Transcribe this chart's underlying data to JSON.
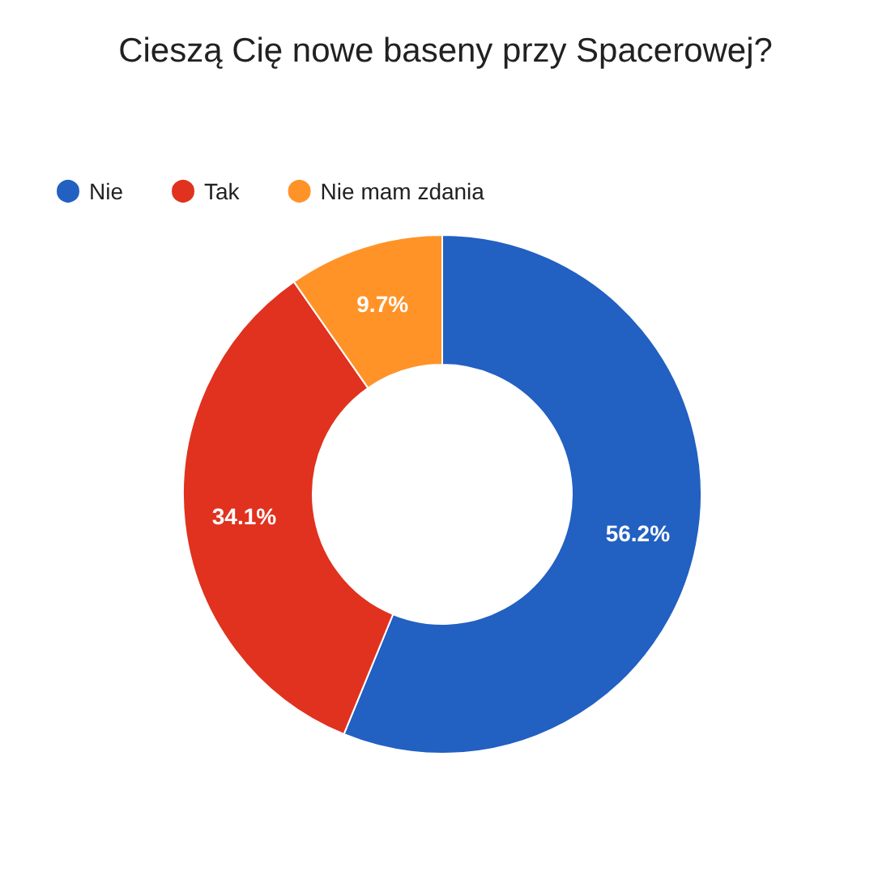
{
  "chart_data": {
    "type": "donut",
    "title": "Cieszą Cię nowe baseny przy Spacerowej?",
    "categories": [
      "Nie",
      "Tak",
      "Nie mam zdania"
    ],
    "values": [
      56.2,
      34.1,
      9.7
    ],
    "value_labels": [
      "56.2%",
      "34.1%",
      "9.7%"
    ],
    "colors": [
      "#2260c2",
      "#e0321f",
      "#ff9328"
    ],
    "legend": "top left"
  }
}
